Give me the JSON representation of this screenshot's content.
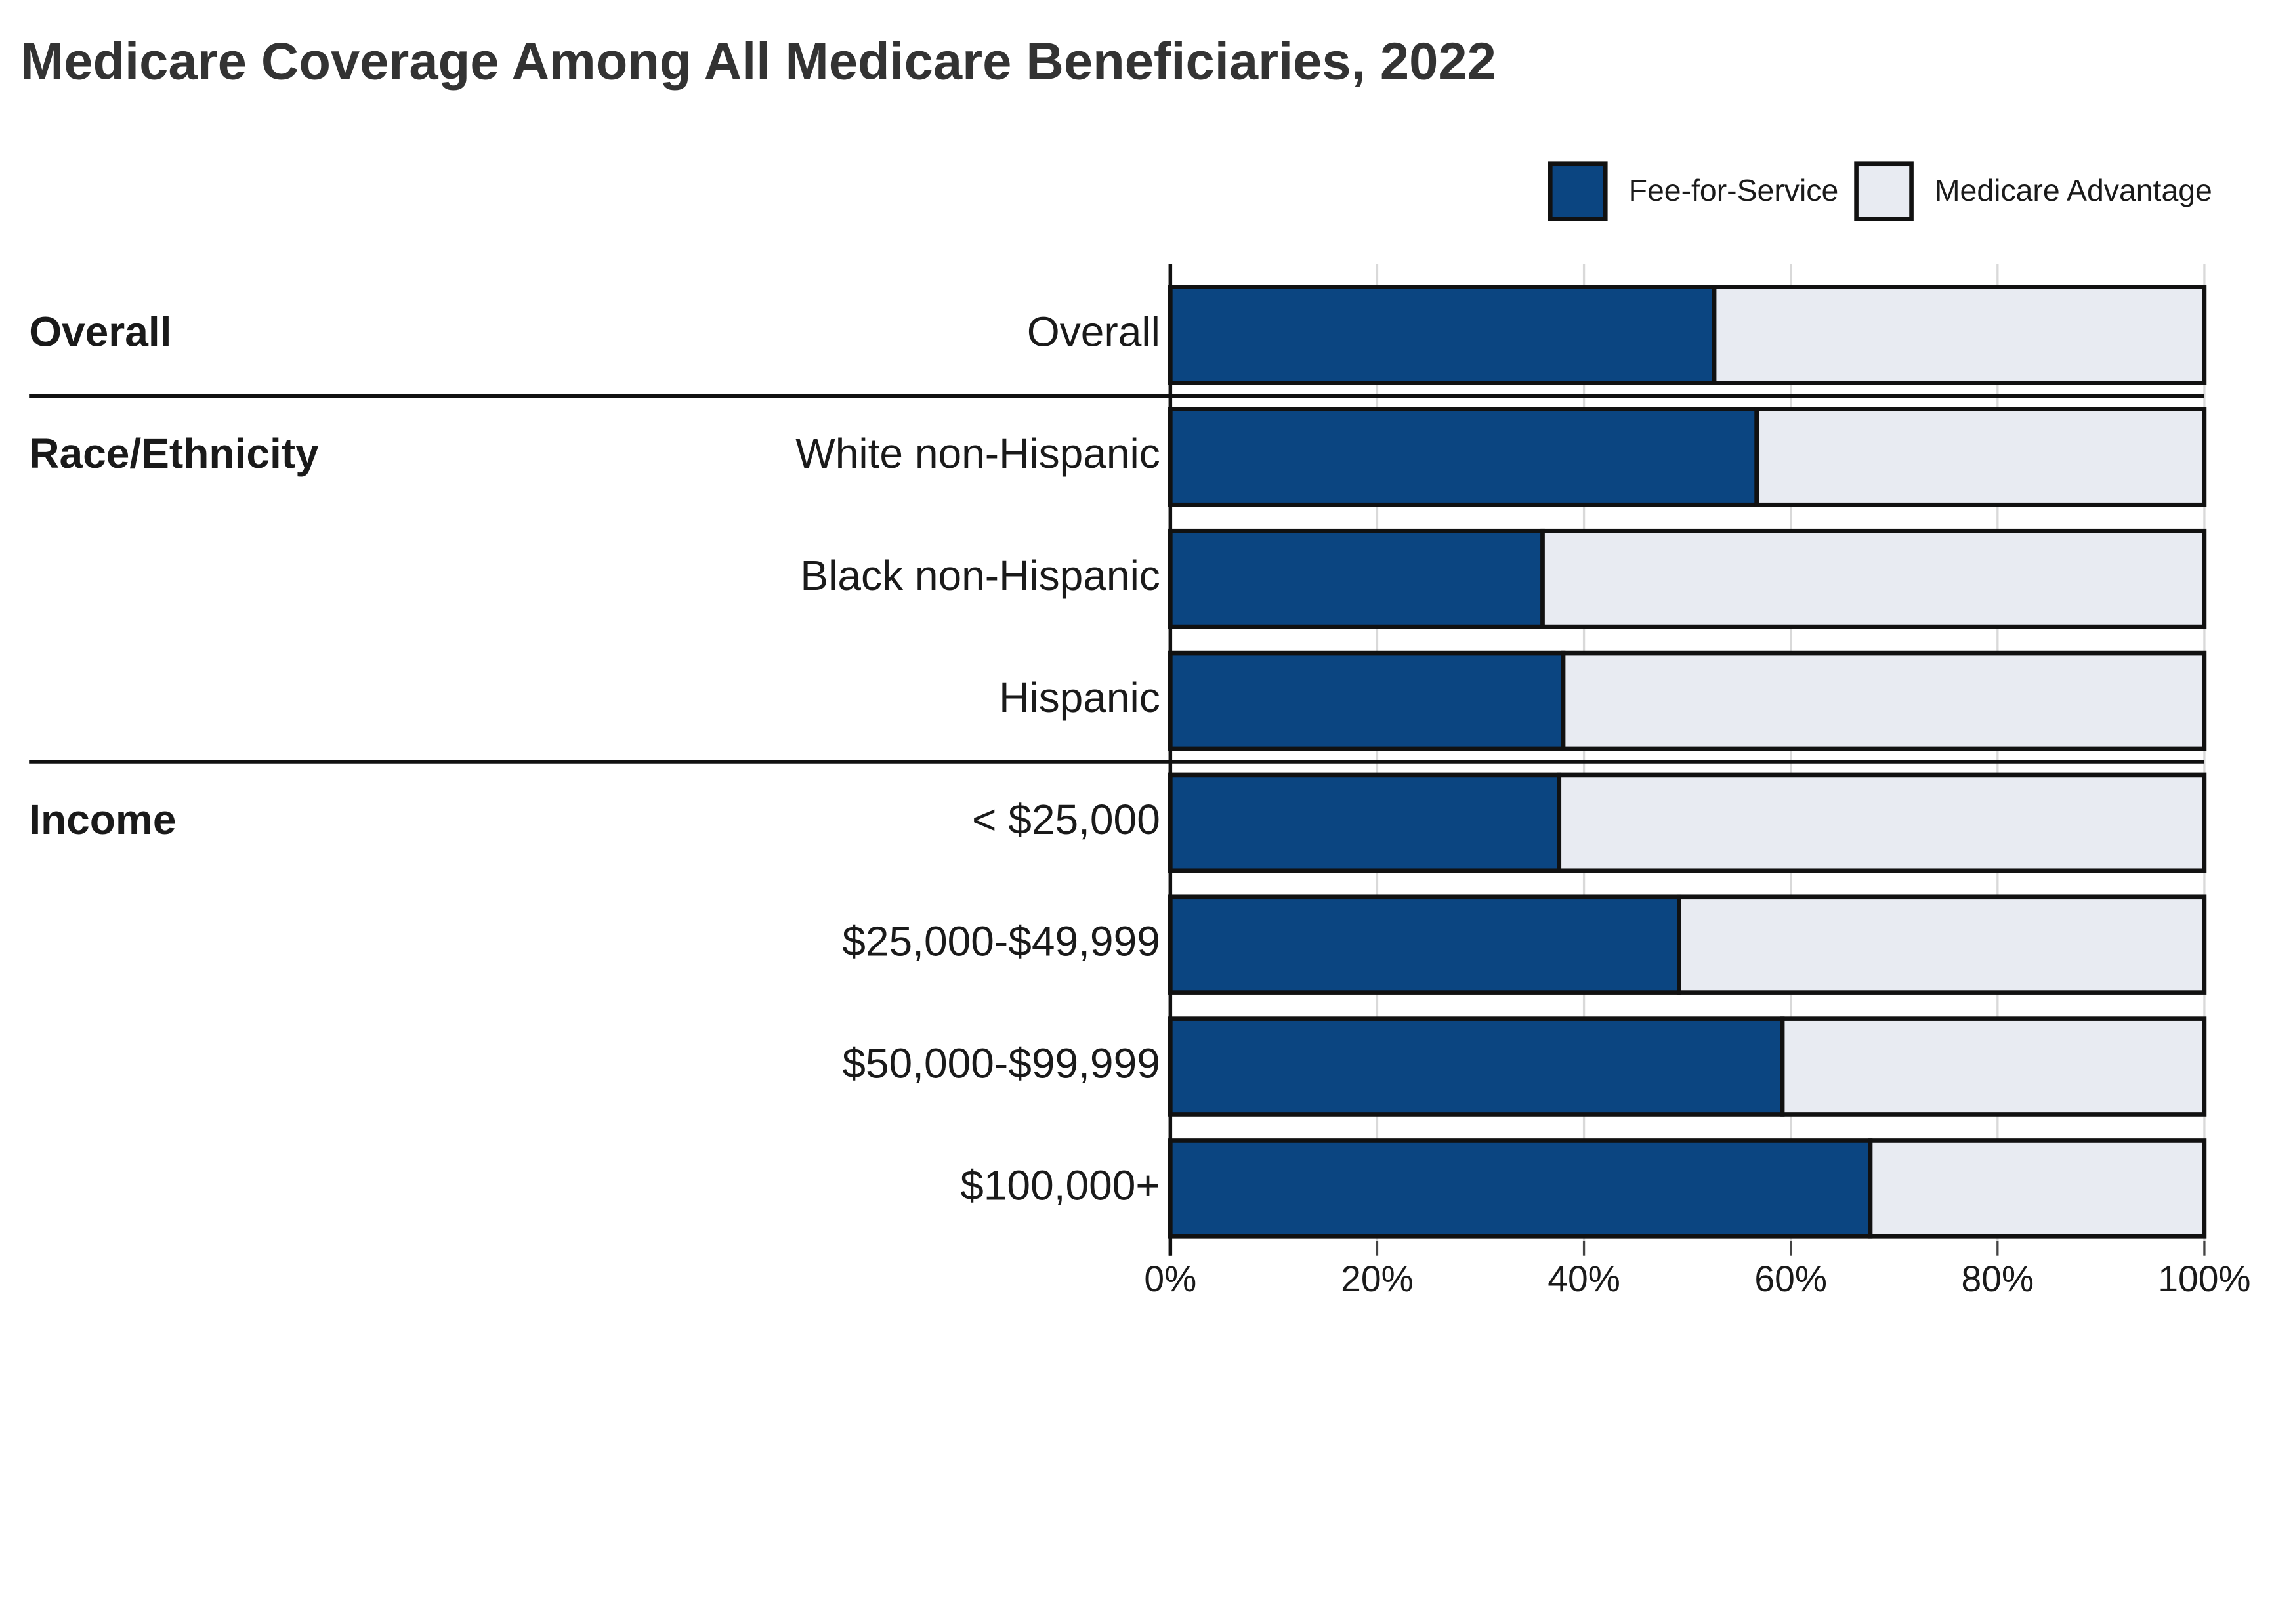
{
  "chart_data": {
    "type": "stacked-bar-horizontal",
    "title": "Medicare Coverage Among All Medicare Beneficiaries, 2022",
    "categories": [
      "Overall",
      "White non-Hispanic",
      "Black non-Hispanic",
      "Hispanic",
      "< $25,000",
      "$25,000-$49,999",
      "$50,000-$99,999",
      "$100,000+"
    ],
    "group_labels": [
      "Overall",
      "Race/Ethnicity",
      null,
      null,
      "Income",
      null,
      null,
      null
    ],
    "series": [
      {
        "name": "Fee-for-Service",
        "color": "#0b4581",
        "values": [
          52.6,
          56.7,
          36.0,
          38.0,
          37.6,
          49.2,
          59.2,
          67.7
        ]
      },
      {
        "name": "Medicare Advantage",
        "color": "#e8ebf2",
        "values": [
          47.4,
          43.3,
          64.0,
          62.0,
          62.4,
          50.8,
          40.8,
          32.3
        ]
      }
    ],
    "xlim": [
      0,
      100
    ],
    "xticks": [
      {
        "value": 0,
        "label": "0%"
      },
      {
        "value": 20,
        "label": "20%"
      },
      {
        "value": 40,
        "label": "40%"
      },
      {
        "value": 60,
        "label": "60%"
      },
      {
        "value": 80,
        "label": "80%"
      },
      {
        "value": 100,
        "label": "100%"
      }
    ],
    "grid": true,
    "legend": "top-right"
  }
}
